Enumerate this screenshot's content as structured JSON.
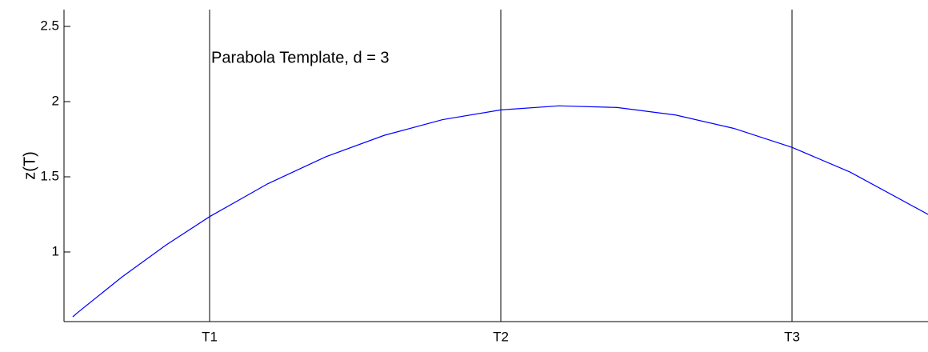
{
  "chart_data": {
    "type": "line",
    "annotation": "Parabola Template, d = 3",
    "y_label": "z(T)",
    "x": [
      0.53,
      0.55,
      0.7,
      0.85,
      1.0,
      1.2,
      1.4,
      1.6,
      1.8,
      2.0,
      2.2,
      2.4,
      2.6,
      2.8,
      3.0,
      3.2,
      3.47
    ],
    "series": [
      {
        "name": "z(T)",
        "color": "#0000ff",
        "values": [
          0.569,
          0.602,
          0.835,
          1.046,
          1.235,
          1.454,
          1.634,
          1.776,
          1.88,
          1.945,
          1.972,
          1.961,
          1.911,
          1.822,
          1.696,
          1.531,
          1.247
        ]
      }
    ],
    "xlim": [
      0.5,
      3.467
    ],
    "xticks": [
      {
        "value": 1,
        "label": "T1"
      },
      {
        "value": 2,
        "label": "T2"
      },
      {
        "value": 3,
        "label": "T3"
      }
    ],
    "ylim": [
      0.537,
      2.612
    ],
    "yticks": [
      1,
      1.5,
      2,
      2.5
    ],
    "grid": true,
    "grid_color": "#000000"
  }
}
